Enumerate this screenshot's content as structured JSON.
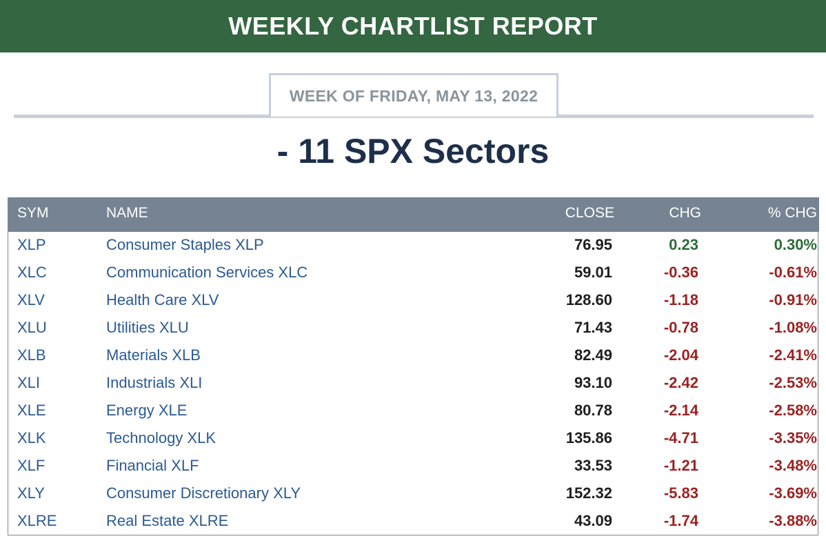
{
  "banner": {
    "title": "WEEKLY CHARTLIST REPORT",
    "color": "#346641"
  },
  "week": {
    "label": "WEEK OF FRIDAY, MAY 13, 2022"
  },
  "section": {
    "title": "- 11 SPX Sectors"
  },
  "table": {
    "headers": {
      "sym": "SYM",
      "name": "NAME",
      "close": "CLOSE",
      "chg": "CHG",
      "pct_chg": "% CHG"
    },
    "colors": {
      "positive": "#2e6b37",
      "negative": "#9a2222",
      "link": "#2b5a92",
      "header_bg": "#758392"
    },
    "rows": [
      {
        "sym": "XLP",
        "name": "Consumer Staples XLP",
        "close": "76.95",
        "chg": "0.23",
        "pct": "0.30%",
        "dir": "pos"
      },
      {
        "sym": "XLC",
        "name": "Communication Services XLC",
        "close": "59.01",
        "chg": "-0.36",
        "pct": "-0.61%",
        "dir": "neg"
      },
      {
        "sym": "XLV",
        "name": "Health Care XLV",
        "close": "128.60",
        "chg": "-1.18",
        "pct": "-0.91%",
        "dir": "neg"
      },
      {
        "sym": "XLU",
        "name": "Utilities XLU",
        "close": "71.43",
        "chg": "-0.78",
        "pct": "-1.08%",
        "dir": "neg"
      },
      {
        "sym": "XLB",
        "name": "Materials XLB",
        "close": "82.49",
        "chg": "-2.04",
        "pct": "-2.41%",
        "dir": "neg"
      },
      {
        "sym": "XLI",
        "name": "Industrials XLI",
        "close": "93.10",
        "chg": "-2.42",
        "pct": "-2.53%",
        "dir": "neg"
      },
      {
        "sym": "XLE",
        "name": "Energy XLE",
        "close": "80.78",
        "chg": "-2.14",
        "pct": "-2.58%",
        "dir": "neg"
      },
      {
        "sym": "XLK",
        "name": "Technology XLK",
        "close": "135.86",
        "chg": "-4.71",
        "pct": "-3.35%",
        "dir": "neg"
      },
      {
        "sym": "XLF",
        "name": "Financial XLF",
        "close": "33.53",
        "chg": "-1.21",
        "pct": "-3.48%",
        "dir": "neg"
      },
      {
        "sym": "XLY",
        "name": "Consumer Discretionary XLY",
        "close": "152.32",
        "chg": "-5.83",
        "pct": "-3.69%",
        "dir": "neg"
      },
      {
        "sym": "XLRE",
        "name": "Real Estate XLRE",
        "close": "43.09",
        "chg": "-1.74",
        "pct": "-3.88%",
        "dir": "neg"
      }
    ]
  }
}
